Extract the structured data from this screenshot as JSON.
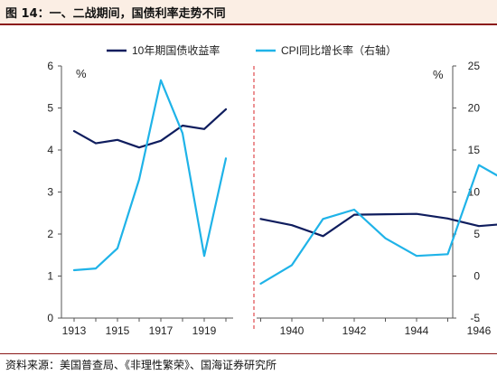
{
  "header": {
    "title": "图 14：一、二战期间，国债利率走势不同"
  },
  "source": "资料来源：美国普查局、《非理性繁荣》、国海证券研究所",
  "chart_data": {
    "type": "line",
    "left_axis": {
      "unit_label": "%",
      "range": [
        0,
        6
      ],
      "ticks": [
        "0",
        "1",
        "2",
        "3",
        "4",
        "5",
        "6"
      ]
    },
    "right_axis": {
      "unit_label": "%",
      "range": [
        -5,
        25
      ],
      "ticks": [
        "-5",
        "0",
        "5",
        "10",
        "15",
        "20",
        "25"
      ]
    },
    "legend": {
      "position": "top-center"
    },
    "separator": {
      "style": "dashed",
      "color": "#d9242a"
    },
    "panels": [
      {
        "x_ticks": [
          "1913",
          "1915",
          "1917",
          "1919"
        ],
        "x": [
          1913,
          1914,
          1915,
          1916,
          1917,
          1918,
          1919,
          1920
        ],
        "series": [
          {
            "name": "10年期国债收益率",
            "axis": "left",
            "color": "#0f1d5e",
            "values": [
              4.45,
              4.16,
              4.24,
              4.06,
              4.22,
              4.58,
              4.5,
              4.97
            ]
          },
          {
            "name": "CPI同比增长率（右轴）",
            "axis": "right",
            "color": "#1fb3e8",
            "values": [
              0.7,
              0.9,
              3.3,
              11.5,
              23.3,
              17.0,
              2.4,
              14.0
            ]
          }
        ]
      },
      {
        "x_ticks": [
          "1940",
          "1942",
          "1944",
          "1946"
        ],
        "x": [
          1939,
          1940,
          1941,
          1942,
          1943,
          1944,
          1945,
          1946,
          1947
        ],
        "series": [
          {
            "name": "10年期国债收益率",
            "axis": "left",
            "color": "#0f1d5e",
            "values": [
              2.36,
              2.21,
              1.95,
              2.46,
              2.47,
              2.48,
              2.37,
              2.19,
              2.25
            ]
          },
          {
            "name": "CPI同比增长率（右轴）",
            "axis": "right",
            "color": "#1fb3e8",
            "values": [
              -0.9,
              1.3,
              6.8,
              7.9,
              4.5,
              2.4,
              2.6,
              13.2,
              11.1
            ]
          }
        ]
      }
    ]
  }
}
